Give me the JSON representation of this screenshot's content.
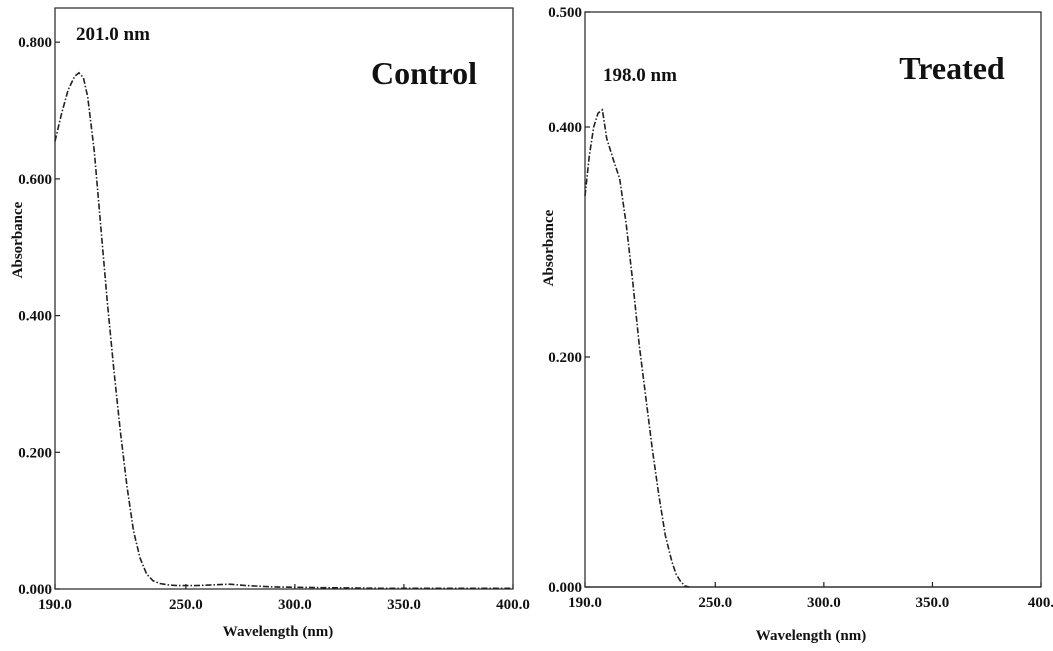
{
  "chart_data": [
    {
      "type": "line",
      "title": "Control",
      "annotation": "201.0 nm",
      "xlabel": "Wavelength (nm)",
      "ylabel": "Absorbance",
      "xlim": [
        190,
        400
      ],
      "ylim": [
        0,
        0.85
      ],
      "xticks": [
        "190.0",
        "250.0",
        "300.0",
        "350.0",
        "400.0"
      ],
      "xtick_values": [
        190,
        250,
        300,
        350,
        400
      ],
      "yticks": [
        "0.000",
        "0.200",
        "0.400",
        "0.600",
        "0.800"
      ],
      "ytick_values": [
        0,
        0.2,
        0.4,
        0.6,
        0.8
      ],
      "show_baseline": false,
      "series": [
        {
          "x": [
            190,
            193,
            196,
            199,
            201,
            203,
            205,
            208,
            211,
            214,
            217,
            220,
            223,
            226,
            229,
            232,
            235,
            238,
            242,
            246,
            250,
            255,
            262,
            270,
            278,
            290,
            310,
            340,
            370,
            400
          ],
          "y": [
            0.655,
            0.695,
            0.73,
            0.75,
            0.755,
            0.748,
            0.72,
            0.64,
            0.53,
            0.42,
            0.32,
            0.23,
            0.15,
            0.085,
            0.045,
            0.022,
            0.012,
            0.008,
            0.006,
            0.005,
            0.005,
            0.005,
            0.006,
            0.007,
            0.005,
            0.003,
            0.002,
            0.001,
            0.001,
            0.001
          ]
        }
      ]
    },
    {
      "type": "line",
      "title": "Treated",
      "annotation": "198.0 nm",
      "xlabel": "Wavelength (nm)",
      "ylabel": "Absorbance",
      "xlim": [
        190,
        400
      ],
      "ylim": [
        0,
        0.5
      ],
      "xticks": [
        "190.0",
        "250.0",
        "300.0",
        "350.0",
        "400."
      ],
      "xtick_values": [
        190,
        250,
        300,
        350,
        400
      ],
      "yticks": [
        "0.000",
        "0.200",
        "0.400",
        "0.500"
      ],
      "ytick_values": [
        0,
        0.2,
        0.4,
        0.5
      ],
      "show_baseline": true,
      "series": [
        {
          "x": [
            190,
            192,
            194,
            196,
            198,
            200,
            203,
            206,
            209,
            212,
            215,
            218,
            221,
            224,
            227,
            230,
            232,
            234,
            236,
            238
          ],
          "y": [
            0.34,
            0.375,
            0.4,
            0.412,
            0.415,
            0.39,
            0.372,
            0.355,
            0.315,
            0.265,
            0.21,
            0.165,
            0.12,
            0.08,
            0.045,
            0.022,
            0.011,
            0.005,
            0.001,
            0.0
          ]
        }
      ]
    }
  ]
}
